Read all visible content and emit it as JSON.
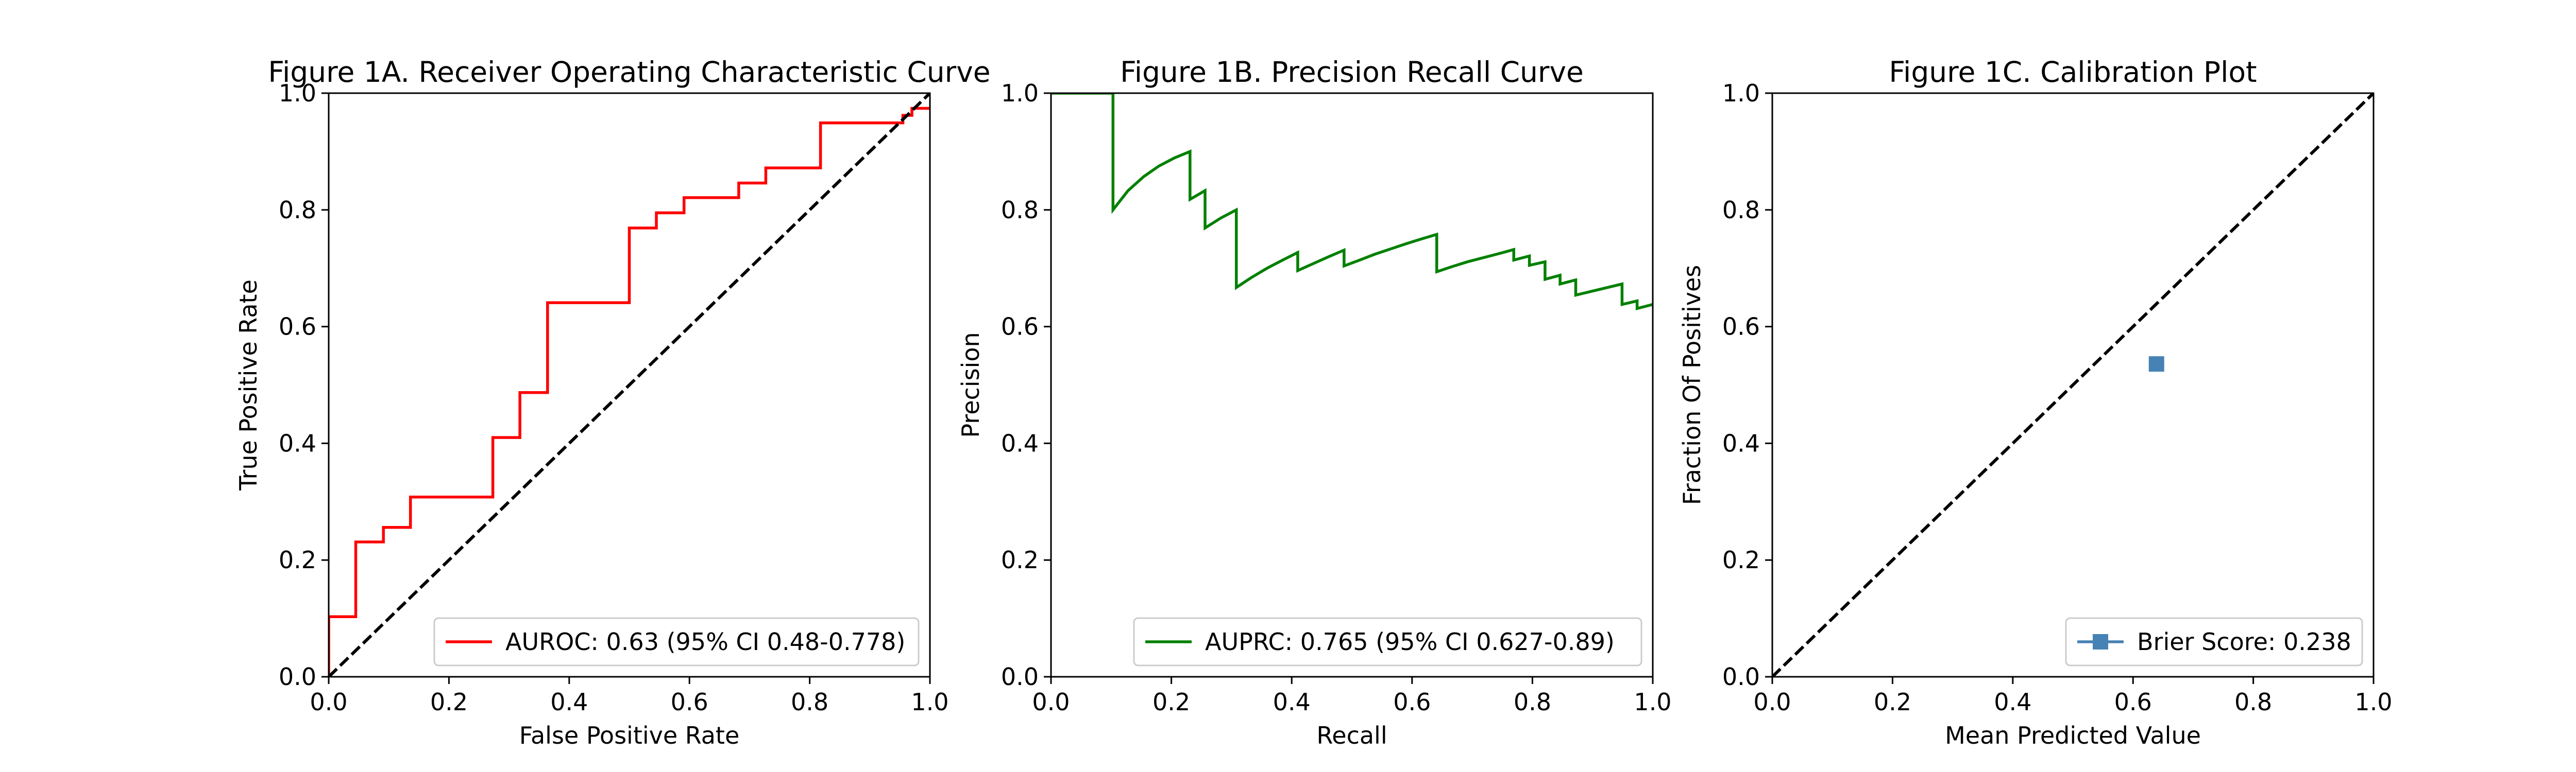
{
  "colors": {
    "roc": "#ff0000",
    "pr": "#008000",
    "calibration": "#4682b4",
    "diagonal": "#000000",
    "legend_border": "#cccccc"
  },
  "chart_data": [
    {
      "type": "line",
      "title": "Figure 1A. Receiver Operating Characteristic Curve",
      "xlabel": "False Positive Rate",
      "ylabel": "True Positive Rate",
      "xlim": [
        0,
        1
      ],
      "ylim": [
        0,
        1
      ],
      "xticks": [
        "0.0",
        "0.2",
        "0.4",
        "0.6",
        "0.8",
        "1.0"
      ],
      "yticks": [
        "0.0",
        "0.2",
        "0.4",
        "0.6",
        "0.8",
        "1.0"
      ],
      "grid": false,
      "legend_position": "lower right",
      "series": [
        {
          "name": "AUROC: 0.63 (95% CI 0.48-0.778)",
          "color": "#ff0000",
          "x": [
            0.0,
            0.0,
            0.045,
            0.045,
            0.091,
            0.091,
            0.136,
            0.136,
            0.273,
            0.273,
            0.318,
            0.318,
            0.364,
            0.364,
            0.5,
            0.5,
            0.545,
            0.545,
            0.591,
            0.591,
            0.682,
            0.682,
            0.727,
            0.727,
            0.818,
            0.818,
            0.955,
            0.955,
            0.97,
            0.97,
            1.0
          ],
          "y": [
            0.0,
            0.103,
            0.103,
            0.231,
            0.231,
            0.256,
            0.256,
            0.308,
            0.308,
            0.41,
            0.41,
            0.487,
            0.487,
            0.641,
            0.641,
            0.769,
            0.769,
            0.795,
            0.795,
            0.821,
            0.821,
            0.846,
            0.846,
            0.872,
            0.872,
            0.949,
            0.949,
            0.962,
            0.962,
            0.974,
            0.974
          ]
        },
        {
          "name": "",
          "style": "dashed",
          "color": "#000000",
          "x": [
            0,
            1
          ],
          "y": [
            0,
            1
          ]
        }
      ]
    },
    {
      "type": "line",
      "title": "Figure 1B. Precision Recall Curve",
      "xlabel": "Recall",
      "ylabel": "Precision",
      "xlim": [
        0,
        1
      ],
      "ylim": [
        0,
        1
      ],
      "xticks": [
        "0.0",
        "0.2",
        "0.4",
        "0.6",
        "0.8",
        "1.0"
      ],
      "yticks": [
        "0.0",
        "0.2",
        "0.4",
        "0.6",
        "0.8",
        "1.0"
      ],
      "grid": false,
      "legend_position": "lower right",
      "series": [
        {
          "name": "AUPRC: 0.765 (95% CI 0.627-0.89)",
          "color": "#008000",
          "x": [
            0.0,
            0.103,
            0.103,
            0.128,
            0.154,
            0.179,
            0.205,
            0.231,
            0.231,
            0.256,
            0.256,
            0.282,
            0.308,
            0.308,
            0.333,
            0.359,
            0.385,
            0.41,
            0.41,
            0.436,
            0.462,
            0.487,
            0.487,
            0.513,
            0.538,
            0.564,
            0.59,
            0.615,
            0.641,
            0.641,
            0.667,
            0.692,
            0.718,
            0.744,
            0.769,
            0.769,
            0.795,
            0.795,
            0.821,
            0.821,
            0.846,
            0.846,
            0.872,
            0.872,
            0.949,
            0.949,
            0.974,
            0.974,
            1.0
          ],
          "y": [
            1.0,
            1.0,
            0.8,
            0.833,
            0.857,
            0.875,
            0.889,
            0.9,
            0.818,
            0.833,
            0.769,
            0.786,
            0.8,
            0.667,
            0.684,
            0.7,
            0.714,
            0.727,
            0.696,
            0.708,
            0.72,
            0.731,
            0.704,
            0.714,
            0.724,
            0.733,
            0.742,
            0.75,
            0.758,
            0.694,
            0.703,
            0.711,
            0.718,
            0.725,
            0.732,
            0.714,
            0.721,
            0.705,
            0.711,
            0.681,
            0.688,
            0.673,
            0.68,
            0.654,
            0.673,
            0.638,
            0.644,
            0.631,
            0.638
          ]
        }
      ]
    },
    {
      "type": "scatter",
      "title": "Figure 1C. Calibration Plot",
      "xlabel": "Mean Predicted Value",
      "ylabel": "Fraction Of Positives",
      "xlim": [
        0,
        1
      ],
      "ylim": [
        0,
        1
      ],
      "xticks": [
        "0.0",
        "0.2",
        "0.4",
        "0.6",
        "0.8",
        "1.0"
      ],
      "yticks": [
        "0.0",
        "0.2",
        "0.4",
        "0.6",
        "0.8",
        "1.0"
      ],
      "grid": false,
      "legend_position": "lower right",
      "series": [
        {
          "name": "Brier Score: 0.238",
          "color": "#4682b4",
          "marker": "square",
          "x": [
            0.639
          ],
          "y": [
            0.536
          ]
        },
        {
          "name": "",
          "style": "dashed",
          "color": "#000000",
          "x": [
            0,
            1
          ],
          "y": [
            0,
            1
          ]
        }
      ]
    }
  ]
}
